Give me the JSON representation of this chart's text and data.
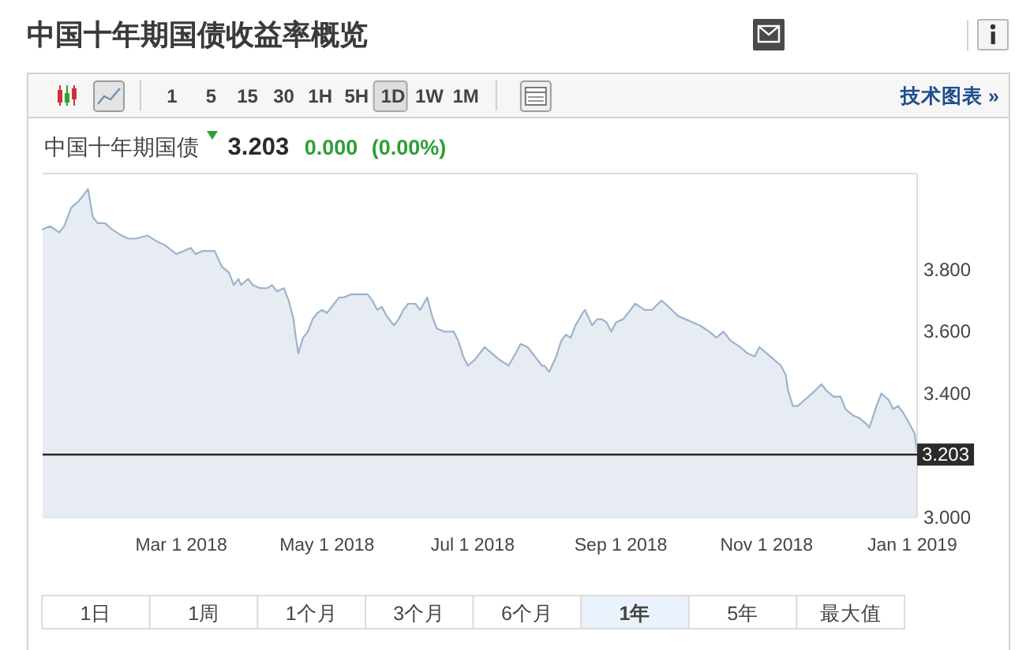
{
  "chart_data": {
    "type": "area",
    "title": "中国十年期国债收益率概览",
    "subtitle": "中国十年期国债 3.203 0.000 (0.00%)",
    "x": [
      "2018-01-02",
      "2018-01-05",
      "2018-01-09",
      "2018-01-11",
      "2018-01-14",
      "2018-01-17",
      "2018-01-20",
      "2018-01-21",
      "2018-01-23",
      "2018-01-25",
      "2018-01-28",
      "2018-01-31",
      "2018-02-04",
      "2018-02-07",
      "2018-02-10",
      "2018-02-15",
      "2018-02-19",
      "2018-02-22",
      "2018-02-27",
      "2018-03-02",
      "2018-03-05",
      "2018-03-07",
      "2018-03-10",
      "2018-03-15",
      "2018-03-18",
      "2018-03-21",
      "2018-03-23",
      "2018-03-25",
      "2018-03-26",
      "2018-03-29",
      "2018-03-31",
      "2018-04-03",
      "2018-04-06",
      "2018-04-08",
      "2018-04-10",
      "2018-04-13",
      "2018-04-15",
      "2018-04-17",
      "2018-04-18",
      "2018-04-19",
      "2018-04-21",
      "2018-04-23",
      "2018-04-25",
      "2018-04-27",
      "2018-04-29",
      "2018-05-01",
      "2018-05-06",
      "2018-05-08",
      "2018-05-11",
      "2018-05-15",
      "2018-05-18",
      "2018-05-20",
      "2018-05-22",
      "2018-05-24",
      "2018-05-26",
      "2018-05-29",
      "2018-05-31",
      "2018-06-02",
      "2018-06-04",
      "2018-06-07",
      "2018-06-09",
      "2018-06-12",
      "2018-06-14",
      "2018-06-16",
      "2018-06-19",
      "2018-06-23",
      "2018-06-25",
      "2018-06-27",
      "2018-06-29",
      "2018-07-02",
      "2018-07-06",
      "2018-07-09",
      "2018-07-12",
      "2018-07-16",
      "2018-07-19",
      "2018-07-21",
      "2018-07-24",
      "2018-07-27",
      "2018-07-30",
      "2018-07-31",
      "2018-08-02",
      "2018-08-05",
      "2018-08-07",
      "2018-08-09",
      "2018-08-11",
      "2018-08-13",
      "2018-08-16",
      "2018-08-17",
      "2018-08-20",
      "2018-08-22",
      "2018-08-24",
      "2018-08-26",
      "2018-08-28",
      "2018-08-30",
      "2018-09-02",
      "2018-09-05",
      "2018-09-07",
      "2018-09-11",
      "2018-09-14",
      "2018-09-18",
      "2018-09-21",
      "2018-09-25",
      "2018-09-28",
      "2018-10-01",
      "2018-10-04",
      "2018-10-08",
      "2018-10-11",
      "2018-10-14",
      "2018-10-17",
      "2018-10-21",
      "2018-10-24",
      "2018-10-27",
      "2018-10-29",
      "2018-11-01",
      "2018-11-04",
      "2018-11-07",
      "2018-11-09",
      "2018-11-10",
      "2018-11-12",
      "2018-11-14",
      "2018-11-17",
      "2018-11-20",
      "2018-11-24",
      "2018-11-26",
      "2018-11-29",
      "2018-12-02",
      "2018-12-04",
      "2018-12-07",
      "2018-12-10",
      "2018-12-13",
      "2018-12-14",
      "2018-12-17",
      "2018-12-19",
      "2018-12-22",
      "2018-12-24",
      "2018-12-26",
      "2018-12-28",
      "2018-12-31",
      "2019-01-02",
      "2019-01-03"
    ],
    "series": [
      {
        "color": "#9db3cc",
        "values": [
          3.93,
          3.94,
          3.92,
          3.94,
          4.0,
          4.02,
          4.05,
          4.06,
          3.97,
          3.95,
          3.95,
          3.93,
          3.91,
          3.9,
          3.9,
          3.91,
          3.89,
          3.88,
          3.85,
          3.86,
          3.87,
          3.85,
          3.86,
          3.86,
          3.81,
          3.79,
          3.75,
          3.77,
          3.75,
          3.77,
          3.75,
          3.74,
          3.74,
          3.75,
          3.73,
          3.74,
          3.7,
          3.64,
          3.58,
          3.53,
          3.58,
          3.6,
          3.64,
          3.66,
          3.67,
          3.66,
          3.71,
          3.71,
          3.72,
          3.72,
          3.72,
          3.7,
          3.67,
          3.68,
          3.65,
          3.62,
          3.64,
          3.67,
          3.69,
          3.69,
          3.67,
          3.71,
          3.65,
          3.61,
          3.6,
          3.6,
          3.57,
          3.52,
          3.49,
          3.51,
          3.55,
          3.53,
          3.51,
          3.49,
          3.53,
          3.56,
          3.55,
          3.52,
          3.49,
          3.49,
          3.47,
          3.52,
          3.57,
          3.59,
          3.58,
          3.62,
          3.66,
          3.67,
          3.62,
          3.64,
          3.64,
          3.63,
          3.6,
          3.63,
          3.64,
          3.67,
          3.69,
          3.67,
          3.67,
          3.7,
          3.68,
          3.65,
          3.64,
          3.63,
          3.62,
          3.6,
          3.58,
          3.6,
          3.57,
          3.55,
          3.53,
          3.52,
          3.55,
          3.53,
          3.51,
          3.49,
          3.46,
          3.41,
          3.36,
          3.36,
          3.38,
          3.4,
          3.43,
          3.41,
          3.39,
          3.39,
          3.35,
          3.33,
          3.32,
          3.3,
          3.29,
          3.36,
          3.4,
          3.38,
          3.35,
          3.36,
          3.34,
          3.3,
          3.27,
          3.203
        ]
      }
    ],
    "xlim": [
      "2018-01-02",
      "2019-01-03"
    ],
    "ylim": [
      3.0,
      4.11
    ],
    "xticks": [
      {
        "value": "2018-03-01",
        "label": "Mar 1 2018"
      },
      {
        "value": "2018-05-01",
        "label": "May 1 2018"
      },
      {
        "value": "2018-07-01",
        "label": "Jul 1 2018"
      },
      {
        "value": "2018-09-01",
        "label": "Sep 1 2018"
      },
      {
        "value": "2018-11-01",
        "label": "Nov 1 2018"
      },
      {
        "value": "2019-01-01",
        "label": "Jan 1 2019"
      }
    ],
    "yticks": [
      {
        "value": 3.0,
        "label": "3.000"
      },
      {
        "value": 3.4,
        "label": "3.400"
      },
      {
        "value": 3.6,
        "label": "3.600"
      },
      {
        "value": 3.8,
        "label": "3.800"
      }
    ],
    "ref_lines": [
      {
        "axis": "y",
        "value": 3.203,
        "label": "3.203",
        "color": "#2b2b2b"
      }
    ],
    "annotations": [
      "1 5 15 30 1H 5H 1D 1W 1M",
      "技术图表 »",
      "1日",
      "1周",
      "1个月",
      "3个月",
      "6个月",
      "1年",
      "5年",
      "最大值"
    ]
  }
}
